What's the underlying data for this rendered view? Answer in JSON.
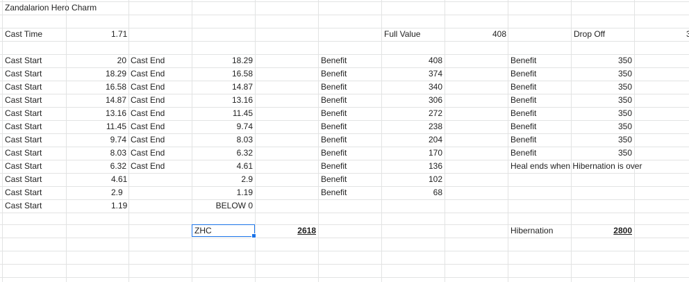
{
  "title": "Zandalarion Hero Charm",
  "cast_time": {
    "label": "Cast Time",
    "value": "1.71"
  },
  "full_value": {
    "label": "Full Value",
    "value": "408"
  },
  "drop_off": {
    "label": "Drop Off",
    "overflow": "3"
  },
  "rows": [
    {
      "start_label": "Cast Start",
      "start": "20",
      "end_label": "Cast End",
      "end": "18.29",
      "benefit_label": "Benefit",
      "benefit": "408",
      "drop_label": "Benefit",
      "drop": "350"
    },
    {
      "start_label": "Cast Start",
      "start": "18.29",
      "end_label": "Cast End",
      "end": "16.58",
      "benefit_label": "Benefit",
      "benefit": "374",
      "drop_label": "Benefit",
      "drop": "350"
    },
    {
      "start_label": "Cast Start",
      "start": "16.58",
      "end_label": "Cast End",
      "end": "14.87",
      "benefit_label": "Benefit",
      "benefit": "340",
      "drop_label": "Benefit",
      "drop": "350"
    },
    {
      "start_label": "Cast Start",
      "start": "14.87",
      "end_label": "Cast End",
      "end": "13.16",
      "benefit_label": "Benefit",
      "benefit": "306",
      "drop_label": "Benefit",
      "drop": "350"
    },
    {
      "start_label": "Cast Start",
      "start": "13.16",
      "end_label": "Cast End",
      "end": "11.45",
      "benefit_label": "Benefit",
      "benefit": "272",
      "drop_label": "Benefit",
      "drop": "350"
    },
    {
      "start_label": "Cast Start",
      "start": "11.45",
      "end_label": "Cast End",
      "end": "9.74",
      "benefit_label": "Benefit",
      "benefit": "238",
      "drop_label": "Benefit",
      "drop": "350"
    },
    {
      "start_label": "Cast Start",
      "start": "9.74",
      "end_label": "Cast End",
      "end": "8.03",
      "benefit_label": "Benefit",
      "benefit": "204",
      "drop_label": "Benefit",
      "drop": "350"
    },
    {
      "start_label": "Cast Start",
      "start": "8.03",
      "end_label": "Cast End",
      "end": "6.32",
      "benefit_label": "Benefit",
      "benefit": "170",
      "drop_label": "Benefit",
      "drop": "350"
    },
    {
      "start_label": "Cast Start",
      "start": "6.32",
      "end_label": "Cast End",
      "end": "4.61",
      "benefit_label": "Benefit",
      "benefit": "136",
      "drop_label": "Heal ends when Hibernation is over",
      "drop": ""
    },
    {
      "start_label": "Cast Start",
      "start": "4.61",
      "end_label": "",
      "end": "2.9",
      "benefit_label": "Benefit",
      "benefit": "102",
      "drop_label": "",
      "drop": ""
    },
    {
      "start_label": "Cast Start",
      "start": "2.9",
      "end_label": "",
      "end": "1.19",
      "benefit_label": "Benefit",
      "benefit": "68",
      "drop_label": "",
      "drop": ""
    },
    {
      "start_label": "Cast Start",
      "start": "1.19",
      "end_label": "",
      "end": "BELOW 0",
      "benefit_label": "",
      "benefit": "",
      "drop_label": "",
      "drop": ""
    }
  ],
  "totals": {
    "zhc_label": "ZHC",
    "zhc_value": "2618",
    "hib_label": "Hibernation",
    "hib_value": "2800"
  },
  "colors": {
    "gridline": "#e2e3e3",
    "selection": "#1a73e8"
  }
}
